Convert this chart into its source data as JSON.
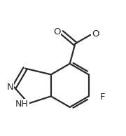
{
  "bg_color": "#ffffff",
  "line_color": "#2a2a2a",
  "line_width": 1.6,
  "label_fontsize": 9.5,
  "xlim": [
    0.0,
    1.0
  ],
  "ylim": [
    0.05,
    1.05
  ]
}
